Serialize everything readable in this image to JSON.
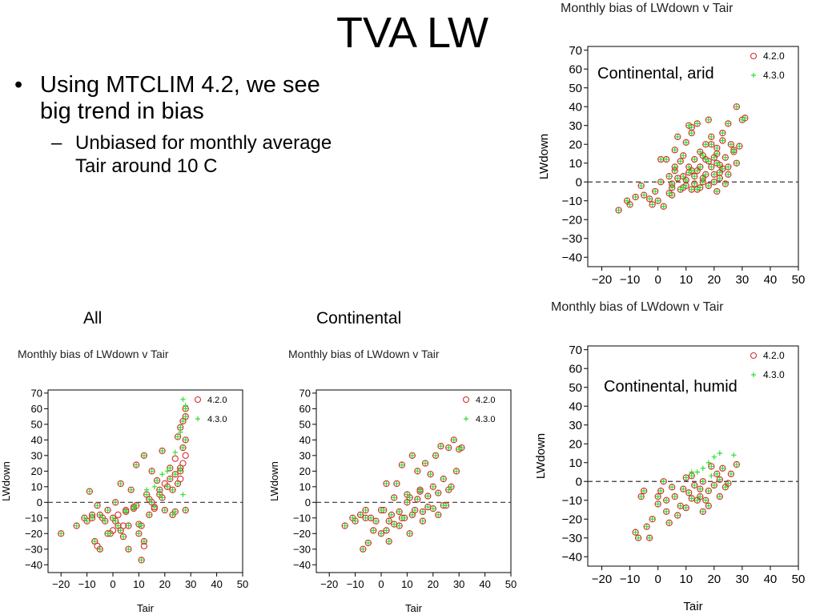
{
  "slide": {
    "title": "TVA LW",
    "bullet_main": "Using MTCLIM 4.2, we see big trend in bias",
    "bullet_sub": "Unbiased for monthly average Tair around 10 C",
    "label_all": "All",
    "label_continental": "Continental"
  },
  "colors": {
    "series_420": "#d32f2f",
    "series_430": "#33dd33",
    "zero_line": "#333333"
  },
  "chart_data": [
    {
      "id": "arid",
      "type": "scatter",
      "title": "Monthly bias of LWdown v Tair",
      "annotation": "Continental, arid",
      "xlabel": "Tair",
      "ylabel": "LWdown",
      "xlim": [
        -25,
        50
      ],
      "ylim": [
        -45,
        72
      ],
      "xticks": [
        -20,
        -10,
        0,
        10,
        20,
        30,
        40,
        50
      ],
      "yticks": [
        -40,
        -30,
        -20,
        -10,
        0,
        10,
        20,
        30,
        40,
        50,
        60,
        70
      ],
      "legend": [
        "4.2.0",
        "4.3.0"
      ],
      "x": [
        -14,
        -11,
        -10,
        -8,
        -6,
        -5,
        -3,
        -2,
        -1,
        0,
        1,
        1,
        2,
        3,
        4,
        4,
        5,
        5,
        5,
        6,
        6,
        7,
        7,
        8,
        8,
        9,
        9,
        10,
        10,
        10,
        11,
        11,
        12,
        12,
        12,
        13,
        13,
        13,
        14,
        14,
        15,
        15,
        15,
        16,
        16,
        17,
        17,
        18,
        18,
        18,
        19,
        19,
        20,
        20,
        20,
        21,
        21,
        21,
        22,
        22,
        22,
        23,
        23,
        24,
        24,
        25,
        25,
        26,
        27,
        28,
        28,
        29,
        30,
        31,
        12,
        14,
        17,
        19,
        21,
        23,
        25,
        27,
        16,
        11,
        9,
        6
      ],
      "y": [
        -15,
        -10,
        -12,
        -8,
        -2,
        -7,
        -9,
        -12,
        -5,
        -10,
        0,
        12,
        -13,
        12,
        -6,
        3,
        -3,
        -7,
        -1,
        17,
        8,
        2,
        24,
        -4,
        11,
        3,
        14,
        1,
        21,
        -2,
        5,
        30,
        29,
        26,
        -4,
        12,
        -1,
        3,
        6,
        31,
        16,
        -3,
        8,
        2,
        14,
        20,
        4,
        33,
        11,
        -2,
        8,
        24,
        13,
        0,
        4,
        18,
        -5,
        10,
        9,
        5,
        2,
        22,
        26,
        -1,
        13,
        31,
        8,
        20,
        16,
        40,
        10,
        19,
        33,
        34,
        6,
        -4,
        12,
        20,
        15,
        7,
        4,
        17,
        0,
        8,
        -3,
        6
      ],
      "x2": [
        -14,
        -11,
        -10,
        -8,
        -6,
        -5,
        -3,
        -2,
        -1,
        0,
        1,
        1,
        2,
        3,
        4,
        4,
        5,
        5,
        5,
        6,
        6,
        7,
        7,
        8,
        8,
        9,
        9,
        10,
        10,
        10,
        11,
        11,
        12,
        12,
        12,
        13,
        13,
        13,
        14,
        14,
        15,
        15,
        15,
        16,
        16,
        17,
        17,
        18,
        18,
        18,
        19,
        19,
        20,
        20,
        20,
        21,
        21,
        21,
        22,
        22,
        22,
        23,
        23,
        24,
        24,
        25,
        25,
        26,
        27,
        28,
        28,
        29,
        30,
        31,
        12,
        14,
        17,
        19,
        21,
        23,
        25,
        27,
        16,
        11,
        9,
        6
      ],
      "y2": [
        -15,
        -10,
        -12,
        -8,
        -2,
        -7,
        -9,
        -12,
        -5,
        -10,
        0,
        12,
        -13,
        12,
        -6,
        3,
        -3,
        -7,
        -1,
        17,
        8,
        2,
        24,
        -4,
        11,
        3,
        14,
        1,
        21,
        -2,
        5,
        30,
        29,
        26,
        -4,
        12,
        -1,
        3,
        6,
        31,
        16,
        -3,
        8,
        2,
        14,
        20,
        4,
        33,
        11,
        -2,
        8,
        24,
        13,
        0,
        4,
        18,
        -5,
        10,
        9,
        5,
        2,
        22,
        26,
        -1,
        13,
        31,
        8,
        20,
        16,
        40,
        10,
        19,
        33,
        34,
        6,
        -4,
        12,
        20,
        15,
        7,
        4,
        17,
        0,
        8,
        -3,
        6
      ]
    },
    {
      "id": "humid",
      "type": "scatter",
      "title": "Monthly bias of LWdown v Tair",
      "annotation": "Continental, humid",
      "xlabel": "Tair",
      "ylabel": "LWdown",
      "xlim": [
        -25,
        50
      ],
      "ylim": [
        -45,
        72
      ],
      "xticks": [
        -20,
        -10,
        0,
        10,
        20,
        30,
        40,
        50
      ],
      "yticks": [
        -40,
        -30,
        -20,
        -10,
        0,
        10,
        20,
        30,
        40,
        50,
        60,
        70
      ],
      "legend": [
        "4.2.0",
        "4.3.0"
      ],
      "x": [
        -8,
        -7,
        -6,
        -5,
        -3,
        -2,
        0,
        1,
        2,
        3,
        4,
        5,
        6,
        7,
        8,
        9,
        10,
        10,
        11,
        12,
        12,
        13,
        14,
        15,
        15,
        16,
        16,
        17,
        18,
        19,
        20,
        21,
        22,
        23,
        24,
        26,
        28,
        0,
        3,
        -4,
        18,
        22,
        25
      ],
      "y": [
        -27,
        -30,
        -8,
        -5,
        -30,
        -20,
        -12,
        -5,
        0,
        -10,
        -22,
        -3,
        -8,
        -18,
        -13,
        -4,
        2,
        -14,
        -6,
        -9,
        3,
        -2,
        -10,
        -4,
        -8,
        0,
        -16,
        -10,
        -5,
        8,
        -2,
        4,
        1,
        7,
        -3,
        4,
        9,
        -8,
        -16,
        -24,
        -13,
        -8,
        -1
      ],
      "x2": [
        -8,
        -7,
        -6,
        -5,
        -3,
        -2,
        0,
        1,
        2,
        3,
        4,
        5,
        6,
        7,
        8,
        9,
        10,
        10,
        11,
        12,
        12,
        13,
        14,
        15,
        15,
        16,
        16,
        17,
        18,
        19,
        20,
        21,
        22,
        23,
        24,
        26,
        28,
        0,
        3,
        -4,
        18,
        22,
        25,
        14,
        16,
        18,
        20,
        22,
        27,
        12,
        19
      ],
      "y2": [
        -27,
        -30,
        -8,
        -5,
        -30,
        -20,
        -12,
        -5,
        0,
        -10,
        -22,
        -3,
        -8,
        -18,
        -13,
        -4,
        2,
        -14,
        -6,
        -9,
        3,
        -2,
        -10,
        -4,
        -8,
        0,
        -16,
        -10,
        -5,
        8,
        -2,
        4,
        1,
        7,
        -3,
        4,
        9,
        -8,
        -16,
        -24,
        -13,
        -8,
        -1,
        5,
        7,
        10,
        13,
        15,
        14,
        5,
        3
      ]
    },
    {
      "id": "all",
      "type": "scatter",
      "title": "Monthly bias of LWdown v Tair",
      "annotation": "",
      "xlabel": "Tair",
      "ylabel": "LWdown",
      "xlim": [
        -25,
        50
      ],
      "ylim": [
        -45,
        72
      ],
      "xticks": [
        -20,
        -10,
        0,
        10,
        20,
        30,
        40,
        50
      ],
      "yticks": [
        -40,
        -30,
        -20,
        -10,
        0,
        10,
        20,
        30,
        40,
        50,
        60,
        70
      ],
      "legend": [
        "4.2.0",
        "4.3.0"
      ],
      "x": [
        -20,
        -14,
        -11,
        -10,
        -9,
        -8,
        -7,
        -6,
        -5,
        -4,
        -3,
        -2,
        -1,
        0,
        1,
        2,
        3,
        4,
        5,
        6,
        7,
        8,
        9,
        10,
        11,
        12,
        13,
        14,
        15,
        16,
        17,
        18,
        19,
        20,
        21,
        22,
        23,
        24,
        25,
        26,
        27,
        28,
        28,
        28,
        27,
        26,
        25,
        24,
        10,
        11,
        12,
        3,
        5,
        -5,
        -8,
        8,
        14,
        18,
        22,
        26,
        1,
        -2,
        6,
        9,
        15,
        19,
        23,
        28,
        28,
        27,
        26,
        12,
        2,
        0,
        -6,
        4,
        16,
        20,
        24
      ],
      "y": [
        -20,
        -15,
        -10,
        -12,
        7,
        -8,
        -25,
        -2,
        -30,
        -10,
        -12,
        -5,
        -20,
        -10,
        0,
        -15,
        12,
        -22,
        -6,
        -30,
        8,
        -4,
        24,
        -14,
        -37,
        30,
        5,
        -8,
        20,
        -3,
        14,
        8,
        33,
        -5,
        10,
        22,
        -8,
        18,
        42,
        48,
        52,
        60,
        55,
        40,
        35,
        22,
        12,
        -6,
        -20,
        -15,
        -25,
        -18,
        -5,
        -8,
        -10,
        -3,
        2,
        5,
        15,
        20,
        -12,
        -20,
        -15,
        -2,
        0,
        3,
        8,
        -5,
        30,
        25,
        15,
        -28,
        -8,
        -18,
        -28,
        -15,
        -4,
        12,
        28
      ],
      "x2": [
        -20,
        -14,
        -11,
        -10,
        -9,
        -8,
        -7,
        -6,
        -5,
        -4,
        -3,
        -2,
        -1,
        0,
        1,
        2,
        3,
        4,
        5,
        6,
        7,
        8,
        9,
        10,
        11,
        12,
        13,
        14,
        15,
        16,
        17,
        18,
        19,
        20,
        21,
        22,
        23,
        24,
        25,
        26,
        27,
        28,
        28,
        28,
        27,
        26,
        25,
        24,
        10,
        11,
        12,
        3,
        5,
        -5,
        -8,
        8,
        14,
        18,
        22,
        26,
        1,
        -2,
        6,
        9,
        15,
        19,
        23,
        28,
        27,
        28,
        26,
        24,
        21,
        19,
        16,
        13,
        27
      ],
      "y2": [
        -20,
        -15,
        -10,
        -12,
        7,
        -8,
        -25,
        -2,
        -30,
        -10,
        -12,
        -5,
        -20,
        -10,
        0,
        -15,
        12,
        -22,
        -6,
        -30,
        8,
        -4,
        24,
        -14,
        -37,
        30,
        5,
        -8,
        20,
        -3,
        14,
        8,
        33,
        -5,
        10,
        22,
        -8,
        18,
        42,
        48,
        52,
        60,
        55,
        40,
        35,
        22,
        12,
        -6,
        -20,
        -15,
        -25,
        -18,
        -5,
        -8,
        -10,
        -3,
        2,
        5,
        15,
        20,
        -12,
        -20,
        -15,
        -2,
        0,
        3,
        8,
        -5,
        66,
        62,
        45,
        32,
        20,
        18,
        10,
        8,
        5,
        38
      ]
    },
    {
      "id": "continental",
      "type": "scatter",
      "title": "Monthly bias of LWdown v Tair",
      "annotation": "",
      "xlabel": "Tair",
      "ylabel": "LWdown",
      "xlim": [
        -25,
        50
      ],
      "ylim": [
        -45,
        72
      ],
      "xticks": [
        -20,
        -10,
        0,
        10,
        20,
        30,
        40,
        50
      ],
      "yticks": [
        -40,
        -30,
        -20,
        -10,
        0,
        10,
        20,
        30,
        40,
        50,
        60,
        70
      ],
      "legend": [
        "4.2.0",
        "4.3.0"
      ],
      "x": [
        -14,
        -11,
        -10,
        -8,
        -7,
        -6,
        -5,
        -4,
        -3,
        -2,
        0,
        1,
        2,
        3,
        4,
        5,
        6,
        7,
        8,
        9,
        10,
        11,
        12,
        13,
        14,
        15,
        16,
        17,
        18,
        19,
        20,
        21,
        22,
        23,
        24,
        25,
        26,
        27,
        28,
        29,
        30,
        31,
        2,
        5,
        8,
        12,
        16,
        20,
        24,
        -6,
        0,
        10,
        14,
        18,
        22,
        26,
        3,
        7,
        11,
        15
      ],
      "y": [
        -15,
        -10,
        -12,
        -8,
        -30,
        -5,
        -26,
        -10,
        -18,
        -12,
        -20,
        -5,
        12,
        -25,
        -8,
        3,
        12,
        -15,
        24,
        -10,
        5,
        -20,
        30,
        -5,
        20,
        8,
        -12,
        25,
        -3,
        18,
        10,
        30,
        -8,
        36,
        15,
        -2,
        35,
        10,
        40,
        20,
        34,
        35,
        -18,
        -14,
        -10,
        -8,
        -6,
        -4,
        -2,
        -10,
        -5,
        0,
        2,
        4,
        6,
        8,
        -12,
        -6,
        3,
        7
      ],
      "x2": [
        -14,
        -11,
        -10,
        -8,
        -7,
        -6,
        -5,
        -4,
        -3,
        -2,
        0,
        1,
        2,
        3,
        4,
        5,
        6,
        7,
        8,
        9,
        10,
        11,
        12,
        13,
        14,
        15,
        16,
        17,
        18,
        19,
        20,
        21,
        22,
        23,
        24,
        25,
        26,
        27,
        28,
        29,
        30,
        31,
        2,
        5,
        8,
        12,
        16,
        20,
        24,
        -6,
        0,
        10,
        14,
        18,
        22,
        26,
        3,
        7,
        11,
        15
      ],
      "y2": [
        -15,
        -10,
        -12,
        -8,
        -30,
        -5,
        -26,
        -10,
        -18,
        -12,
        -20,
        -5,
        12,
        -25,
        -8,
        3,
        12,
        -15,
        24,
        -10,
        5,
        -20,
        30,
        -5,
        20,
        8,
        -12,
        25,
        -3,
        18,
        10,
        30,
        -8,
        36,
        15,
        -2,
        35,
        10,
        40,
        20,
        34,
        35,
        -18,
        -14,
        -10,
        -8,
        -6,
        -4,
        -2,
        -10,
        -5,
        0,
        2,
        4,
        6,
        8,
        -12,
        -6,
        3,
        7
      ]
    }
  ]
}
